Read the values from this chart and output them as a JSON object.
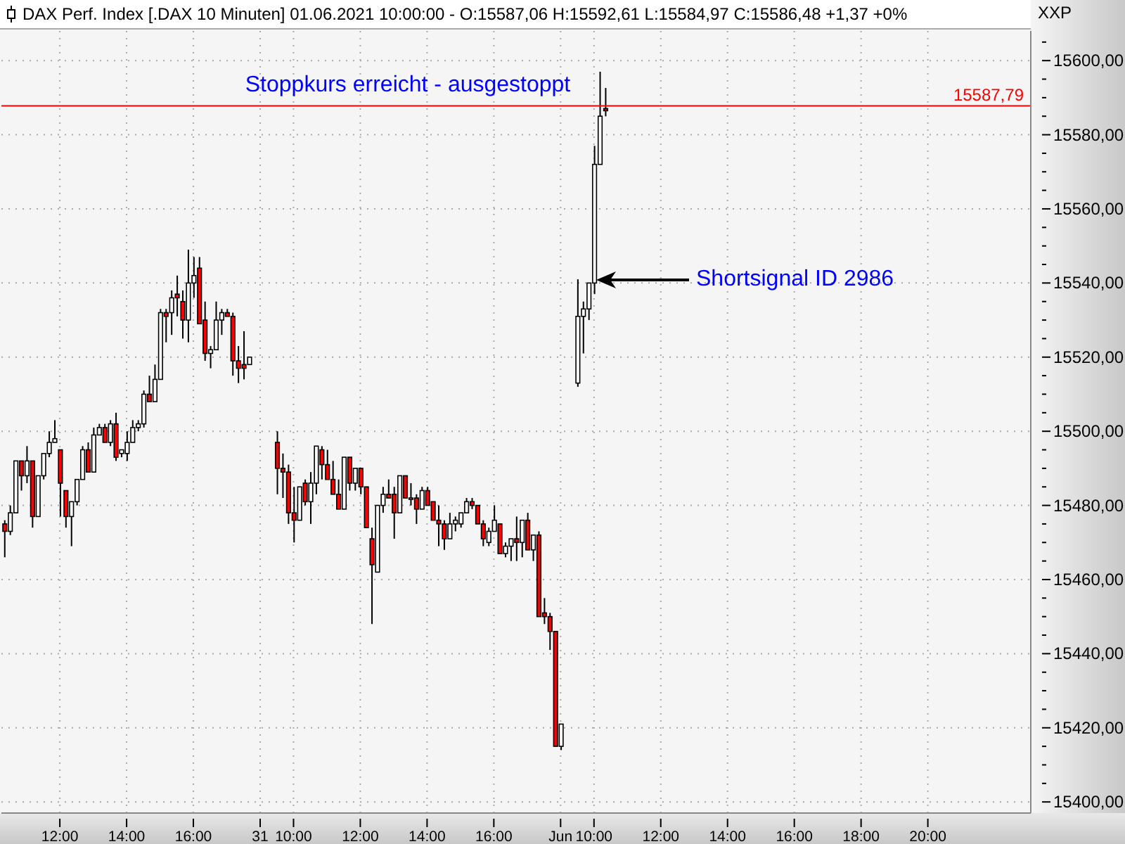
{
  "chart_data": {
    "type": "candlestick",
    "title": "DAX Perf. Index [.DAX  10 Minuten] 01.06.2021 10:00:00 - O:15587,06 H:15592,61 L:15584,97 C:15586,48 +1,37 +0%",
    "annotations": [
      "Stoppkurs erreicht - ausgestoppt",
      "Shortsignal ID 2986",
      "XXP"
    ],
    "categories": [
      null,
      null,
      null,
      null,
      null,
      null,
      null,
      null,
      null,
      null,
      "12:00",
      null,
      null,
      null,
      null,
      null,
      null,
      null,
      null,
      null,
      null,
      null,
      "14:00",
      null,
      null,
      null,
      null,
      null,
      null,
      null,
      null,
      null,
      null,
      null,
      "16:00",
      null,
      null,
      null,
      null,
      null,
      null,
      null,
      null,
      null,
      null,
      null,
      "31",
      null,
      null,
      null,
      null,
      null,
      "10:00",
      null,
      null,
      null,
      null,
      null,
      null,
      null,
      null,
      null,
      null,
      null,
      "12:00",
      null,
      null,
      null,
      null,
      null,
      null,
      null,
      null,
      null,
      null,
      null,
      "14:00",
      null,
      null,
      null,
      null,
      null,
      null,
      null,
      null,
      null,
      null,
      null,
      "16:00",
      null,
      null,
      null,
      null,
      null,
      null,
      null,
      null,
      null,
      null,
      null,
      "Jun",
      null,
      null,
      null,
      null,
      null,
      "10:00",
      null,
      null,
      null,
      null,
      null,
      null,
      null,
      null,
      null,
      null,
      null,
      "12:00",
      null,
      null,
      null,
      null,
      null,
      null,
      null,
      null,
      null,
      null,
      null,
      "14:00",
      null,
      null,
      null,
      null,
      null,
      null,
      null,
      null,
      null,
      null,
      null,
      "16:00",
      null,
      null,
      null,
      null,
      null,
      null,
      null,
      null,
      null,
      null,
      null,
      "18:00",
      null,
      null,
      null,
      null,
      null,
      null,
      null,
      null,
      null,
      null,
      null,
      "20:00",
      null,
      null,
      null,
      null,
      null,
      null,
      null,
      null,
      null,
      null,
      null,
      null,
      null,
      null,
      null,
      null,
      null,
      null
    ],
    "ohlc": [
      [
        15475,
        15476,
        15466,
        15473
      ],
      [
        15473,
        15480,
        15472,
        15478
      ],
      [
        15478,
        15492,
        15478,
        15492
      ],
      [
        15492,
        15492,
        15484,
        15488
      ],
      [
        15488,
        15496,
        15486,
        15492
      ],
      [
        15492,
        15492,
        15474,
        15477
      ],
      [
        15477,
        15488,
        15477,
        15488
      ],
      [
        15488,
        15494,
        15487,
        15494
      ],
      [
        15494,
        15500,
        15493,
        15497
      ],
      [
        15497,
        15503,
        15497,
        15498
      ],
      [
        15495,
        15495,
        15477,
        15486
      ],
      [
        15484,
        15484,
        15474,
        15477
      ],
      [
        15477,
        15481,
        15469,
        15481
      ],
      [
        15481,
        15487,
        15480,
        15487
      ],
      [
        15487,
        15496,
        15487,
        15495
      ],
      [
        15495,
        15497,
        15489,
        15489
      ],
      [
        15489,
        15501,
        15489,
        15499
      ],
      [
        15499,
        15502,
        15499,
        15501
      ],
      [
        15501,
        15502,
        15497,
        15497
      ],
      [
        15497,
        15503,
        15496,
        15502
      ],
      [
        15502,
        15505,
        15492,
        15493
      ],
      [
        15494,
        15495,
        15493,
        15495
      ],
      [
        15494,
        15500,
        15492,
        15497
      ],
      [
        15497,
        15503,
        15497,
        15501
      ],
      [
        15501,
        15503,
        15500,
        15502
      ],
      [
        15502,
        15511,
        15501,
        15510
      ],
      [
        15510,
        15515,
        15508,
        15508
      ],
      [
        15508,
        15518,
        15508,
        15514
      ],
      [
        15514,
        15533,
        15514,
        15532
      ],
      [
        15532,
        15533,
        15524,
        15531
      ],
      [
        15532,
        15538,
        15526,
        15536
      ],
      [
        15537,
        15542,
        15531,
        15536
      ],
      [
        15535,
        15538,
        15525,
        15530
      ],
      [
        15530,
        15549,
        15524,
        15540
      ],
      [
        15540,
        15547,
        15536,
        15542
      ],
      [
        15544,
        15547,
        15529,
        15529
      ],
      [
        15530,
        15535,
        15519,
        15521
      ],
      [
        15521,
        15523,
        15517,
        15522
      ],
      [
        15522,
        15535,
        15522,
        15530
      ],
      [
        15530,
        15533,
        15526,
        15532
      ],
      [
        15532,
        15533,
        15531,
        15531
      ],
      [
        15531,
        15532,
        15515,
        15519
      ],
      [
        15519,
        15523,
        15513,
        15517
      ],
      [
        15518,
        15527,
        15514,
        15517
      ],
      [
        15518,
        15520,
        15518,
        15520
      ],
      null,
      null,
      null,
      null,
      [
        15497,
        15500,
        15483,
        15490
      ],
      [
        15490,
        15494,
        15482,
        15489
      ],
      [
        15489,
        15491,
        15475,
        15478
      ],
      [
        15478,
        15485,
        15470,
        15476
      ],
      [
        15476,
        15485,
        15476,
        15485
      ],
      [
        15486,
        15487,
        15480,
        15481
      ],
      [
        15481,
        15489,
        15475,
        15486
      ],
      [
        15486,
        15496,
        15483,
        15496
      ],
      [
        15495,
        15496,
        15487,
        15491
      ],
      [
        15491,
        15495,
        15487,
        15487
      ],
      [
        15487,
        15492,
        15483,
        15483
      ],
      [
        15483,
        15487,
        15479,
        15479
      ],
      [
        15479,
        15493,
        15479,
        15493
      ],
      [
        15493,
        15493,
        15484,
        15486
      ],
      [
        15486,
        15490,
        15484,
        15490
      ],
      [
        15490,
        15490,
        15483,
        15485
      ],
      [
        15485,
        15485,
        15474,
        15474
      ],
      [
        15471,
        15474,
        15448,
        15464
      ],
      [
        15462,
        15480,
        15462,
        15480
      ],
      [
        15480,
        15485,
        15478,
        15483
      ],
      [
        15483,
        15487,
        15482,
        15482
      ],
      [
        15483,
        15485,
        15471,
        15478
      ],
      [
        15478,
        15488,
        15478,
        15488
      ],
      [
        15488,
        15488,
        15482,
        15482
      ],
      [
        15482,
        15486,
        15480,
        15482
      ],
      [
        15482,
        15483,
        15475,
        15479
      ],
      [
        15479,
        15485,
        15479,
        15484
      ],
      [
        15484,
        15485,
        15480,
        15480
      ],
      [
        15481,
        15481,
        15476,
        15476
      ],
      [
        15476,
        15480,
        15469,
        15475
      ],
      [
        15475,
        15476,
        15468,
        15471
      ],
      [
        15471,
        15478,
        15471,
        15475
      ],
      [
        15475,
        15477,
        15473,
        15476
      ],
      [
        15475,
        15478,
        15474,
        15478
      ],
      [
        15478,
        15482,
        15478,
        15481
      ],
      [
        15481,
        15482,
        15479,
        15480
      ],
      [
        15480,
        15480,
        15475,
        15475
      ],
      [
        15475,
        15476,
        15469,
        15471
      ],
      [
        15470,
        15474,
        15469,
        15473
      ],
      [
        15473,
        15480,
        15473,
        15476
      ],
      [
        15475,
        15475,
        15467,
        15467
      ],
      [
        15467,
        15470,
        15466,
        15469
      ],
      [
        15469,
        15471,
        15465,
        15471
      ],
      [
        15471,
        15477,
        15465,
        15470
      ],
      [
        15470,
        15476,
        15466,
        15476
      ],
      [
        15476,
        15478,
        15468,
        15468
      ],
      [
        15468,
        15472,
        15465,
        15472
      ],
      [
        15472,
        15473,
        15450,
        15450
      ],
      [
        15451,
        15455,
        15448,
        15450
      ],
      [
        15450,
        15451,
        15441,
        15446
      ],
      [
        15446,
        15446,
        15415,
        15415
      ],
      [
        15415,
        15421,
        15414,
        15421
      ],
      null,
      null,
      [
        15513,
        15541,
        15512,
        15531
      ],
      [
        15531,
        15535,
        15521,
        15533
      ],
      [
        15533,
        15540,
        15530,
        15540
      ],
      [
        15540,
        15577,
        15537,
        15572
      ],
      [
        15572,
        15597,
        15572,
        15585
      ],
      [
        15587.06,
        15592.61,
        15584.97,
        15586.48
      ],
      null,
      null,
      null,
      null,
      null,
      null,
      null,
      null,
      null,
      null,
      null,
      null,
      null,
      null,
      null,
      null,
      null,
      null,
      null,
      null,
      null,
      null,
      null,
      null,
      null,
      null,
      null,
      null,
      null,
      null,
      null,
      null,
      null,
      null,
      null,
      null,
      null,
      null,
      null,
      null,
      null,
      null,
      null,
      null,
      null,
      null,
      null,
      null,
      null,
      null,
      null,
      null,
      null,
      null,
      null,
      null,
      null,
      null,
      null,
      null,
      null,
      null,
      null,
      null,
      null,
      null,
      null,
      null,
      null,
      null,
      null,
      null,
      null,
      null,
      null,
      null
    ],
    "ylim": [
      15397,
      15608
    ],
    "yticks": [
      {
        "value": 15400,
        "label": "15400,00"
      },
      {
        "value": 15405,
        "label": null
      },
      {
        "value": 15410,
        "label": null
      },
      {
        "value": 15415,
        "label": null
      },
      {
        "value": 15420,
        "label": "15420,00"
      },
      {
        "value": 15425,
        "label": null
      },
      {
        "value": 15430,
        "label": null
      },
      {
        "value": 15435,
        "label": null
      },
      {
        "value": 15440,
        "label": "15440,00"
      },
      {
        "value": 15445,
        "label": null
      },
      {
        "value": 15450,
        "label": null
      },
      {
        "value": 15455,
        "label": null
      },
      {
        "value": 15460,
        "label": "15460,00"
      },
      {
        "value": 15465,
        "label": null
      },
      {
        "value": 15470,
        "label": null
      },
      {
        "value": 15475,
        "label": null
      },
      {
        "value": 15480,
        "label": "15480,00"
      },
      {
        "value": 15485,
        "label": null
      },
      {
        "value": 15490,
        "label": null
      },
      {
        "value": 15495,
        "label": null
      },
      {
        "value": 15500,
        "label": "15500,00"
      },
      {
        "value": 15505,
        "label": null
      },
      {
        "value": 15510,
        "label": null
      },
      {
        "value": 15515,
        "label": null
      },
      {
        "value": 15520,
        "label": "15520,00"
      },
      {
        "value": 15525,
        "label": null
      },
      {
        "value": 15530,
        "label": null
      },
      {
        "value": 15535,
        "label": null
      },
      {
        "value": 15540,
        "label": "15540,00"
      },
      {
        "value": 15545,
        "label": null
      },
      {
        "value": 15550,
        "label": null
      },
      {
        "value": 15555,
        "label": null
      },
      {
        "value": 15560,
        "label": "15560,00"
      },
      {
        "value": 15565,
        "label": null
      },
      {
        "value": 15570,
        "label": null
      },
      {
        "value": 15575,
        "label": null
      },
      {
        "value": 15580,
        "label": "15580,00"
      },
      {
        "value": 15585,
        "label": null
      },
      {
        "value": 15590,
        "label": null
      },
      {
        "value": 15595,
        "label": null
      },
      {
        "value": 15600,
        "label": "15600,00"
      },
      {
        "value": 15605,
        "label": null
      }
    ],
    "ref_lines": [
      {
        "axis": "y",
        "value": 15587.79,
        "label": "15587,79",
        "color": "#ff0000"
      }
    ],
    "grid": true
  }
}
